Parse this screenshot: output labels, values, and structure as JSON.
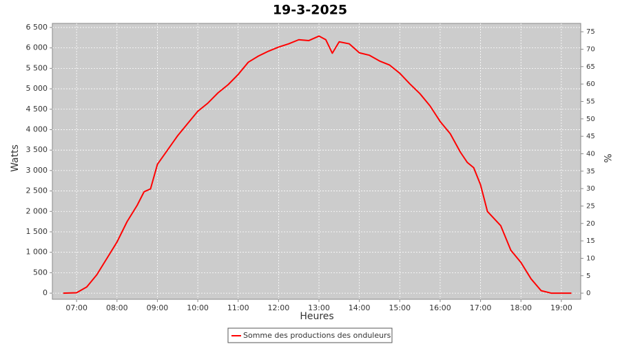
{
  "chart_data": {
    "type": "line",
    "title": "19-3-2025",
    "x_label": "Heures",
    "y_label": "Watts",
    "y2_label": "%",
    "x": [
      6.67,
      7.0,
      7.25,
      7.5,
      7.75,
      8.0,
      8.25,
      8.5,
      8.67,
      8.83,
      9.0,
      9.25,
      9.5,
      9.75,
      10.0,
      10.25,
      10.5,
      10.75,
      11.0,
      11.25,
      11.5,
      11.75,
      12.0,
      12.25,
      12.5,
      12.75,
      13.0,
      13.17,
      13.33,
      13.5,
      13.75,
      14.0,
      14.25,
      14.5,
      14.75,
      15.0,
      15.25,
      15.5,
      15.75,
      16.0,
      16.25,
      16.5,
      16.67,
      16.83,
      17.0,
      17.17,
      17.5,
      17.75,
      18.0,
      18.25,
      18.5,
      18.75,
      19.25
    ],
    "series": [
      {
        "name": "Somme des productions des onduleurs",
        "color": "#ff0000",
        "values": [
          0,
          10,
          150,
          450,
          850,
          1250,
          1750,
          2150,
          2480,
          2550,
          3150,
          3500,
          3850,
          4150,
          4450,
          4650,
          4900,
          5100,
          5350,
          5650,
          5800,
          5920,
          6020,
          6100,
          6200,
          6180,
          6290,
          6200,
          5870,
          6150,
          6100,
          5880,
          5820,
          5680,
          5580,
          5380,
          5120,
          4880,
          4580,
          4200,
          3900,
          3450,
          3200,
          3070,
          2650,
          2000,
          1650,
          1050,
          750,
          350,
          60,
          0,
          0
        ]
      }
    ],
    "xlim": [
      6.4,
      19.48
    ],
    "xticks": [
      {
        "value": 7,
        "label": "07:00"
      },
      {
        "value": 8,
        "label": "08:00"
      },
      {
        "value": 9,
        "label": "09:00"
      },
      {
        "value": 10,
        "label": "10:00"
      },
      {
        "value": 11,
        "label": "11:00"
      },
      {
        "value": 12,
        "label": "12:00"
      },
      {
        "value": 13,
        "label": "13:00"
      },
      {
        "value": 14,
        "label": "14:00"
      },
      {
        "value": 15,
        "label": "15:00"
      },
      {
        "value": 16,
        "label": "16:00"
      },
      {
        "value": 17,
        "label": "17:00"
      },
      {
        "value": 18,
        "label": "18:00"
      },
      {
        "value": 19,
        "label": "19:00"
      }
    ],
    "ylim": [
      -150,
      6600
    ],
    "yticks": [
      0,
      500,
      {
        "value": 1000,
        "label": "1 000"
      },
      {
        "value": 1500,
        "label": "1 500"
      },
      {
        "value": 2000,
        "label": "2 000"
      },
      {
        "value": 2500,
        "label": "2 500"
      },
      {
        "value": 3000,
        "label": "3 000"
      },
      {
        "value": 3500,
        "label": "3 500"
      },
      {
        "value": 4000,
        "label": "4 000"
      },
      {
        "value": 4500,
        "label": "4 500"
      },
      {
        "value": 5000,
        "label": "5 000"
      },
      {
        "value": 5500,
        "label": "5 500"
      },
      {
        "value": 6000,
        "label": "6 000"
      },
      {
        "value": 6500,
        "label": "6 500"
      }
    ],
    "y2lim": [
      -1.76,
      77.4
    ],
    "y2ticks": [
      0,
      5,
      10,
      15,
      20,
      25,
      30,
      35,
      40,
      45,
      50,
      55,
      60,
      65,
      70,
      75
    ],
    "grid": true
  }
}
